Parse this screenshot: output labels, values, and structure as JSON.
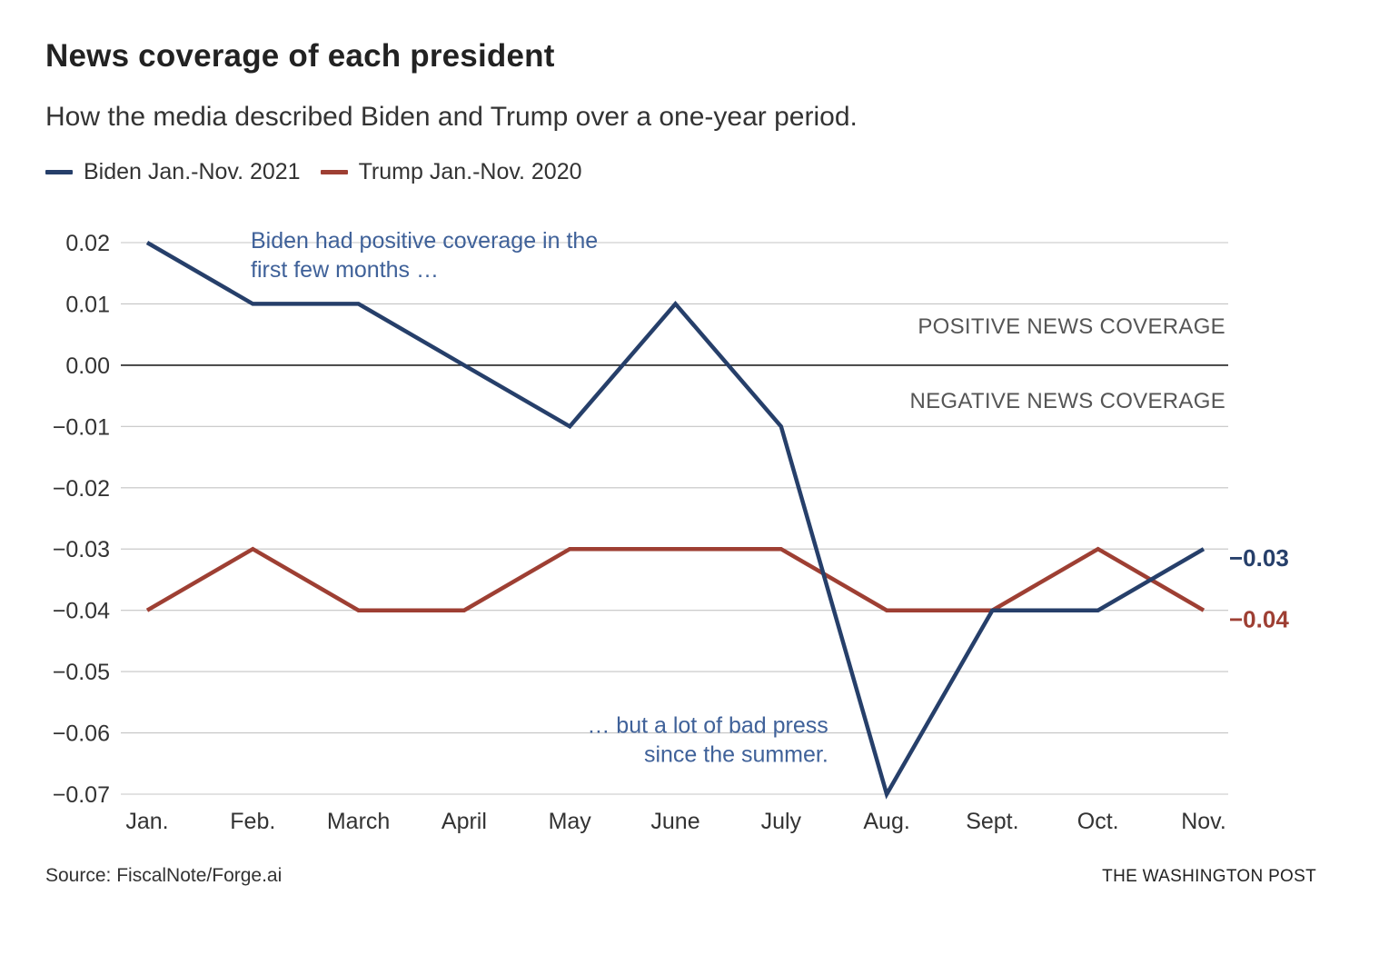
{
  "chart_data": {
    "type": "line",
    "title": "News coverage of each president",
    "subtitle": "How the media described Biden and Trump over a one-year period.",
    "categories": [
      "Jan.",
      "Feb.",
      "March",
      "April",
      "May",
      "June",
      "July",
      "Aug.",
      "Sept.",
      "Oct.",
      "Nov."
    ],
    "series": [
      {
        "name": "Biden Jan.-Nov. 2021",
        "color": "#263f6a",
        "values": [
          0.02,
          0.01,
          0.01,
          0.0,
          -0.01,
          0.01,
          -0.01,
          -0.07,
          -0.04,
          -0.04,
          -0.03
        ],
        "end_label": "−0.03"
      },
      {
        "name": "Trump Jan.-Nov. 2020",
        "color": "#9e3f33",
        "values": [
          -0.04,
          -0.03,
          -0.04,
          -0.04,
          -0.03,
          -0.03,
          -0.03,
          -0.04,
          -0.04,
          -0.03,
          -0.04
        ],
        "end_label": "−0.04"
      }
    ],
    "ylim": [
      -0.07,
      0.02
    ],
    "yticks": [
      0.02,
      0.01,
      0.0,
      -0.01,
      -0.02,
      -0.03,
      -0.04,
      -0.05,
      -0.06,
      -0.07
    ],
    "ytick_labels": [
      "0.02",
      "0.01",
      "0.00",
      "−0.01",
      "−0.02",
      "−0.03",
      "−0.04",
      "−0.05",
      "−0.06",
      "−0.07"
    ],
    "xlabel": "",
    "ylabel": "",
    "grid": true,
    "legend_position": "top-left",
    "zone_labels": {
      "positive": "POSITIVE NEWS COVERAGE",
      "negative": "NEGATIVE NEWS COVERAGE"
    },
    "annotations": [
      {
        "lines": [
          "Biden had positive coverage in the",
          "first few months …"
        ],
        "x": "Jan.",
        "y": 0.02,
        "anchor": "start"
      },
      {
        "lines": [
          "… but a lot of bad press",
          "since the summer."
        ],
        "x": "July",
        "y": -0.06,
        "anchor": "end"
      }
    ],
    "annotation_color": "#3f6199"
  },
  "footer": {
    "source": "Source: FiscalNote/Forge.ai",
    "credit": "THE WASHINGTON POST"
  }
}
